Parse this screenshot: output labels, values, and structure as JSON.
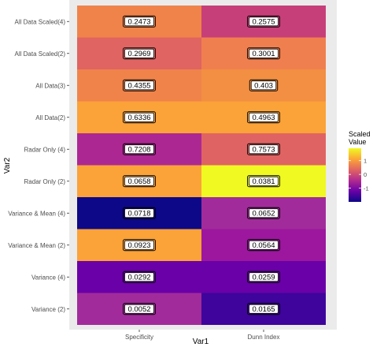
{
  "chart_data": {
    "type": "heatmap",
    "xlabel": "Var1",
    "ylabel": "Var2",
    "x_categories": [
      "Specificity",
      "Dunn Index"
    ],
    "y_categories": [
      "All Data Scaled(4)",
      "All Data Scaled(2)",
      "All Data(3)",
      "All Data(2)",
      "Radar Only (4)",
      "Radar Only (2)",
      "Variance & Mean (4)",
      "Variance & Mean (2)",
      "Variance (4)",
      "Variance (2)"
    ],
    "labels": [
      [
        "0.2473",
        "0.2575"
      ],
      [
        "0.2969",
        "0.3001"
      ],
      [
        "0.4355",
        "0.403"
      ],
      [
        "0.6336",
        "0.4963"
      ],
      [
        "0.7208",
        "0.7573"
      ],
      [
        "0.0658",
        "0.0381"
      ],
      [
        "0.0718",
        "0.0652"
      ],
      [
        "0.0923",
        "0.0564"
      ],
      [
        "0.0292",
        "0.0259"
      ],
      [
        "0.0052",
        "0.0165"
      ]
    ],
    "scaled_values": [
      [
        0.7,
        0.05
      ],
      [
        0.45,
        0.45
      ],
      [
        0.75,
        0.65
      ],
      [
        0.95,
        0.95
      ],
      [
        -0.1,
        0.45
      ],
      [
        0.95,
        1.9
      ],
      [
        -2.0,
        -0.3
      ],
      [
        0.95,
        -0.4
      ],
      [
        -0.85,
        -0.75
      ],
      [
        -0.4,
        -1.55
      ]
    ],
    "colors": [
      [
        "#f0834a",
        "#c73f79"
      ],
      [
        "#e06462",
        "#f07f4f"
      ],
      [
        "#f0834a",
        "#f28f42"
      ],
      [
        "#fba238",
        "#fba238"
      ],
      [
        "#ad2793",
        "#e06363"
      ],
      [
        "#fba238",
        "#f0f921"
      ],
      [
        "#0d0887",
        "#a22b9b"
      ],
      [
        "#fba238",
        "#9c179e"
      ],
      [
        "#6a00a8",
        "#6a00a8"
      ],
      [
        "#a22b9b",
        "#3e049c"
      ]
    ],
    "legend": {
      "title": [
        "Scaled",
        "Value"
      ],
      "ticks": [
        {
          "label": "1",
          "value": 1
        },
        {
          "label": "0",
          "value": 0
        },
        {
          "label": "-1",
          "value": -1
        }
      ],
      "range": [
        -2.0,
        1.9
      ],
      "placement": "right"
    },
    "panel_background": "#ebebeb"
  }
}
